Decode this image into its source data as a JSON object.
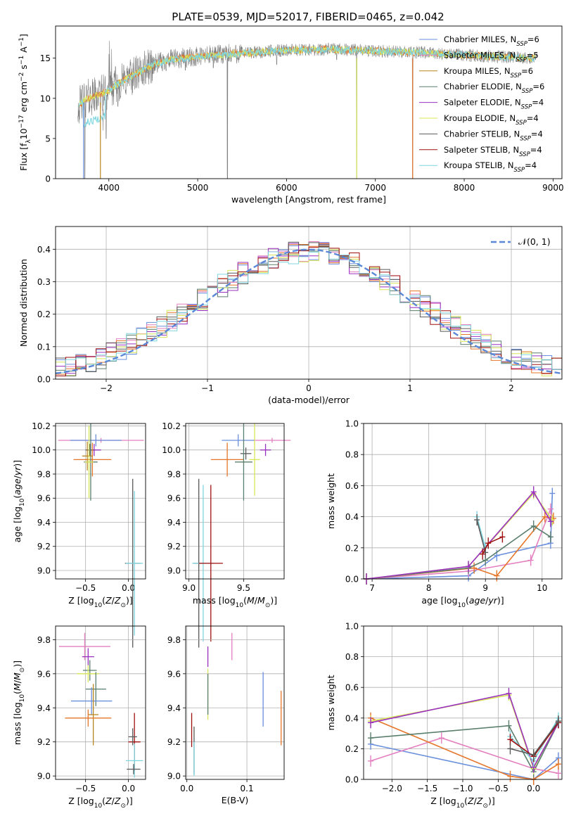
{
  "figure_title": "PLATE=0539, MJD=52017, FIBERID=0465, z=0.042",
  "series_colors": {
    "chabrier_miles": "#6a8fdc",
    "salpeter_miles": "#e47fc0",
    "kroupa_miles": "#b8861e",
    "chabrier_elodie": "#5b7f6e",
    "salpeter_elodie": "#9a30c0",
    "kroupa_elodie": "#d8e65a",
    "chabrier_stelib": "#5a5a5a",
    "salpeter_stelib": "#a01010",
    "kroupa_stelib": "#7fd6e0",
    "orange": "#e6762a",
    "data_gray": "#808080",
    "normal_curve": "#5b87d8"
  },
  "chart_data": [
    {
      "type": "line",
      "panel": "spectrum",
      "xlabel": "wavelength [Angstrom, rest frame]",
      "ylabel": "Flux [f_λ10^−17 erg cm^−2 s^−1 A^−1]",
      "xlim": [
        3400,
        9100
      ],
      "ylim": [
        0,
        19
      ],
      "xticks": [
        4000,
        5000,
        6000,
        7000,
        8000,
        9000
      ],
      "yticks": [
        0,
        5,
        10,
        15
      ],
      "grid": false,
      "legend_position": "top-right",
      "legend": [
        {
          "base": "Chabrier MILES, N",
          "sub": "SSP",
          "tail": "=6",
          "color_key": "chabrier_miles"
        },
        {
          "base": "Salpeter MILES, N",
          "sub": "SSP",
          "tail": "=5",
          "color_key": "salpeter_miles"
        },
        {
          "base": "Kroupa MILES, N",
          "sub": "SSP",
          "tail": "=6",
          "color_key": "kroupa_miles"
        },
        {
          "base": "Chabrier ELODIE, N",
          "sub": "SSP",
          "tail": "=6",
          "color_key": "chabrier_elodie"
        },
        {
          "base": "Salpeter ELODIE, N",
          "sub": "SSP",
          "tail": "=4",
          "color_key": "salpeter_elodie"
        },
        {
          "base": "Kroupa ELODIE, N",
          "sub": "SSP",
          "tail": "=4",
          "color_key": "kroupa_elodie"
        },
        {
          "base": "Chabrier STELIB, N",
          "sub": "SSP",
          "tail": "=4",
          "color_key": "chabrier_stelib"
        },
        {
          "base": "Salpeter STELIB, N",
          "sub": "SSP",
          "tail": "=4",
          "color_key": "salpeter_stelib"
        },
        {
          "base": "Kroupa STELIB, N",
          "sub": "SSP",
          "tail": "=4",
          "color_key": "kroupa_stelib"
        }
      ],
      "continuum": [
        [
          3650,
          9.0
        ],
        [
          3750,
          10.0
        ],
        [
          3900,
          10.5
        ],
        [
          4000,
          11.0
        ],
        [
          4100,
          11.8
        ],
        [
          4300,
          13.0
        ],
        [
          4500,
          14.2
        ],
        [
          4700,
          14.8
        ],
        [
          5000,
          15.2
        ],
        [
          5500,
          15.6
        ],
        [
          6000,
          16.0
        ],
        [
          6500,
          16.1
        ],
        [
          7000,
          15.9
        ],
        [
          7500,
          15.7
        ],
        [
          8000,
          15.4
        ],
        [
          8500,
          15.1
        ],
        [
          8800,
          15.0
        ]
      ],
      "absorption_lines": [
        [
          3730,
          0
        ],
        [
          3935,
          6
        ],
        [
          3970,
          5
        ],
        [
          4101,
          9
        ],
        [
          4304,
          11.5
        ],
        [
          4340,
          12
        ],
        [
          4861,
          13.5
        ],
        [
          5175,
          13.8
        ],
        [
          5335,
          0.5
        ],
        [
          5890,
          14.2
        ],
        [
          6565,
          14.8
        ],
        [
          6790,
          0
        ],
        [
          7420,
          0
        ]
      ],
      "model_cutoffs": [
        [
          3710,
          3960
        ],
        [
          6790,
          6800
        ],
        [
          7420,
          7440
        ]
      ]
    },
    {
      "type": "step",
      "panel": "residual_histogram",
      "xlabel": "(data-model)/error",
      "ylabel": "Normed distribution",
      "xlim": [
        -2.5,
        2.5
      ],
      "ylim": [
        0,
        0.47
      ],
      "xticks": [
        -2,
        -1,
        0,
        1,
        2
      ],
      "yticks": [
        0.0,
        0.1,
        0.2,
        0.3,
        0.4
      ],
      "grid": true,
      "legend_position": "top-right",
      "legend_label": "𝒩(0, 1)",
      "bin_width": 0.1,
      "reference_curve": "standard normal N(0,1)"
    },
    {
      "type": "scatter",
      "panel": "age_vs_metallicity",
      "xlabel": "Z [log10(Z/Z⊙)]",
      "ylabel": "age [log10(age/yr)]",
      "xlim": [
        -0.85,
        0.2
      ],
      "ylim": [
        8.93,
        10.22
      ],
      "xticks": [
        -0.5,
        0.0
      ],
      "yticks": [
        9.0,
        9.2,
        9.4,
        9.6,
        9.8,
        10.0,
        10.2
      ],
      "grid": true,
      "points": [
        {
          "x": -0.32,
          "y": 10.08,
          "xerr": 0.5,
          "yerr": 0.02,
          "color_key": "salpeter_miles"
        },
        {
          "x": -0.38,
          "y": 10.08,
          "xerr": 0.3,
          "yerr": 0.05,
          "color_key": "chabrier_miles"
        },
        {
          "x": -0.4,
          "y": 10.0,
          "xerr": 0.08,
          "yerr": 0.05,
          "color_key": "salpeter_elodie"
        },
        {
          "x": -0.45,
          "y": 10.0,
          "xerr": 0.05,
          "yerr": 0.05,
          "color_key": "chabrier_stelib"
        },
        {
          "x": -0.42,
          "y": 9.92,
          "xerr": 0.22,
          "yerr": 0.14,
          "color_key": "orange"
        },
        {
          "x": -0.44,
          "y": 9.9,
          "xerr": 0.08,
          "yerr": 0.32,
          "color_key": "chabrier_elodie"
        },
        {
          "x": -0.48,
          "y": 9.95,
          "xerr": 0.06,
          "yerr": 0.12,
          "color_key": "kroupa_miles"
        },
        {
          "x": -0.46,
          "y": 9.9,
          "xerr": 0.05,
          "yerr": 0.3,
          "color_key": "kroupa_elodie"
        },
        {
          "x": 0.05,
          "y": 9.06,
          "xerr": 0.09,
          "yerr": 0.7,
          "color_key": "chabrier_stelib"
        },
        {
          "x": 0.07,
          "y": 9.06,
          "xerr": 0.1,
          "yerr": 0.6,
          "color_key": "kroupa_stelib"
        }
      ]
    },
    {
      "type": "scatter",
      "panel": "age_vs_mass",
      "xlabel": "mass [log10(M/M⊙)]",
      "ylabel": "",
      "xlim": [
        8.97,
        9.87
      ],
      "ylim": [
        8.93,
        10.22
      ],
      "xticks": [
        9.0,
        9.5
      ],
      "yticks": [
        9.0,
        9.2,
        9.4,
        9.6,
        9.8,
        10.0,
        10.2
      ],
      "grid": true,
      "points": [
        {
          "x": 9.76,
          "y": 10.08,
          "xerr": 0.17,
          "yerr": 0.02,
          "color_key": "salpeter_miles"
        },
        {
          "x": 9.45,
          "y": 10.08,
          "xerr": 0.15,
          "yerr": 0.05,
          "color_key": "chabrier_miles"
        },
        {
          "x": 9.7,
          "y": 10.0,
          "xerr": 0.05,
          "yerr": 0.05,
          "color_key": "salpeter_elodie"
        },
        {
          "x": 9.52,
          "y": 9.97,
          "xerr": 0.05,
          "yerr": 0.05,
          "color_key": "chabrier_stelib"
        },
        {
          "x": 9.35,
          "y": 9.92,
          "xerr": 0.15,
          "yerr": 0.14,
          "color_key": "orange"
        },
        {
          "x": 9.5,
          "y": 9.9,
          "xerr": 0.08,
          "yerr": 0.32,
          "color_key": "chabrier_elodie"
        },
        {
          "x": 9.6,
          "y": 9.92,
          "xerr": 0.05,
          "yerr": 0.3,
          "color_key": "kroupa_elodie"
        },
        {
          "x": 9.09,
          "y": 9.06,
          "xerr": 0.05,
          "yerr": 0.7,
          "color_key": "chabrier_stelib"
        },
        {
          "x": 9.13,
          "y": 9.06,
          "xerr": 0.1,
          "yerr": 0.65,
          "color_key": "kroupa_stelib"
        },
        {
          "x": 9.2,
          "y": 9.06,
          "xerr": 0.11,
          "yerr": 0.65,
          "color_key": "salpeter_stelib"
        }
      ]
    },
    {
      "type": "line",
      "panel": "mass_weight_vs_age",
      "xlabel": "age [log10(age/yr)]",
      "ylabel": "mass weight",
      "xlim": [
        6.85,
        10.35
      ],
      "ylim": [
        0,
        1.0
      ],
      "xticks": [
        7,
        8,
        9,
        10
      ],
      "yticks": [
        0.0,
        0.2,
        0.4,
        0.6,
        0.8,
        1.0
      ],
      "grid": true,
      "series": [
        {
          "color_key": "chabrier_miles",
          "x": [
            6.9,
            8.7,
            9.2,
            10.15,
            10.18
          ],
          "y": [
            0.0,
            0.02,
            0.15,
            0.23,
            0.55
          ]
        },
        {
          "color_key": "salpeter_miles",
          "x": [
            6.9,
            8.7,
            9.8,
            10.15,
            10.18
          ],
          "y": [
            0.0,
            0.05,
            0.12,
            0.45,
            0.38
          ]
        },
        {
          "color_key": "orange",
          "x": [
            6.9,
            8.8,
            9.2,
            10.05,
            10.2
          ],
          "y": [
            0.0,
            0.07,
            0.02,
            0.4,
            0.39
          ]
        },
        {
          "color_key": "chabrier_elodie",
          "x": [
            6.9,
            8.7,
            9.0,
            9.85,
            10.15
          ],
          "y": [
            0.0,
            0.07,
            0.12,
            0.34,
            0.27
          ]
        },
        {
          "color_key": "kroupa_elodie",
          "x": [
            6.9,
            8.7,
            9.85,
            10.18
          ],
          "y": [
            0.0,
            0.08,
            0.55,
            0.38
          ]
        },
        {
          "color_key": "salpeter_elodie",
          "x": [
            6.9,
            8.7,
            9.85,
            10.15
          ],
          "y": [
            0.0,
            0.08,
            0.56,
            0.37
          ]
        },
        {
          "color_key": "kroupa_stelib",
          "x": [
            8.85,
            9.0
          ],
          "y": [
            0.4,
            0.2
          ]
        },
        {
          "color_key": "chabrier_stelib",
          "x": [
            8.85,
            9.0
          ],
          "y": [
            0.38,
            0.17
          ]
        },
        {
          "color_key": "salpeter_stelib",
          "x": [
            8.95,
            9.05,
            9.3
          ],
          "y": [
            0.16,
            0.23,
            0.27
          ]
        }
      ]
    },
    {
      "type": "scatter",
      "panel": "mass_vs_metallicity",
      "xlabel": "Z [log10(Z/Z⊙)]",
      "ylabel": "mass [log10(M/M⊙)]",
      "xlim": [
        -0.85,
        0.2
      ],
      "ylim": [
        8.98,
        9.88
      ],
      "xticks": [
        -0.5,
        0.0
      ],
      "yticks": [
        9.0,
        9.2,
        9.4,
        9.6,
        9.8
      ],
      "grid": true,
      "points": [
        {
          "x": -0.51,
          "y": 9.76,
          "xerr": 0.3,
          "yerr": 0.08,
          "color_key": "salpeter_miles"
        },
        {
          "x": -0.47,
          "y": 9.7,
          "xerr": 0.07,
          "yerr": 0.05,
          "color_key": "salpeter_elodie"
        },
        {
          "x": -0.45,
          "y": 9.62,
          "xerr": 0.08,
          "yerr": 0.06,
          "color_key": "chabrier_elodie"
        },
        {
          "x": -0.47,
          "y": 9.6,
          "xerr": 0.13,
          "yerr": 0.05,
          "color_key": "kroupa_elodie"
        },
        {
          "x": -0.38,
          "y": 9.51,
          "xerr": 0.12,
          "yerr": 0.1,
          "color_key": "chabrier_elodie"
        },
        {
          "x": -0.43,
          "y": 9.44,
          "xerr": 0.24,
          "yerr": 0.08,
          "color_key": "chabrier_miles"
        },
        {
          "x": -0.41,
          "y": 9.36,
          "xerr": 0.06,
          "yerr": 0.18,
          "color_key": "kroupa_miles"
        },
        {
          "x": -0.47,
          "y": 9.34,
          "xerr": 0.27,
          "yerr": 0.05,
          "color_key": "orange"
        },
        {
          "x": 0.07,
          "y": 9.2,
          "xerr": 0.07,
          "yerr": 0.17,
          "color_key": "salpeter_stelib"
        },
        {
          "x": 0.05,
          "y": 9.23,
          "xerr": 0.05,
          "yerr": 0.05,
          "color_key": "chabrier_stelib"
        },
        {
          "x": 0.07,
          "y": 9.09,
          "xerr": 0.1,
          "yerr": 0.1,
          "color_key": "kroupa_stelib"
        },
        {
          "x": 0.06,
          "y": 9.04,
          "xerr": 0.08,
          "yerr": 0.03,
          "color_key": "chabrier_stelib"
        }
      ]
    },
    {
      "type": "scatter",
      "panel": "mass_vs_ebv",
      "xlabel": "E(B-V)",
      "ylabel": "",
      "xlim": [
        -0.002,
        0.162
      ],
      "ylim": [
        8.98,
        9.88
      ],
      "xticks": [
        0.0,
        0.1
      ],
      "yticks": [
        9.0,
        9.2,
        9.4,
        9.6,
        9.8
      ],
      "grid": true,
      "points": [
        {
          "x": 0.075,
          "y": 9.76,
          "yerr": 0.08,
          "color_key": "salpeter_miles"
        },
        {
          "x": 0.035,
          "y": 9.7,
          "yerr": 0.06,
          "color_key": "salpeter_elodie"
        },
        {
          "x": 0.035,
          "y": 9.48,
          "yerr": 0.15,
          "color_key": "kroupa_elodie"
        },
        {
          "x": 0.035,
          "y": 9.48,
          "yerr": 0.12,
          "color_key": "chabrier_elodie"
        },
        {
          "x": 0.127,
          "y": 9.45,
          "yerr": 0.16,
          "color_key": "chabrier_miles"
        },
        {
          "x": 0.157,
          "y": 9.34,
          "yerr": 0.16,
          "color_key": "orange"
        },
        {
          "x": 0.008,
          "y": 9.27,
          "yerr": 0.1,
          "color_key": "salpeter_stelib"
        },
        {
          "x": 0.012,
          "y": 9.15,
          "yerr": 0.14,
          "color_key": "chabrier_stelib"
        },
        {
          "x": 0.012,
          "y": 9.1,
          "yerr": 0.1,
          "color_key": "kroupa_stelib"
        }
      ]
    },
    {
      "type": "line",
      "panel": "mass_weight_vs_metallicity",
      "xlabel": "Z [log10(Z/Z⊙)]",
      "ylabel": "mass weight",
      "xlim": [
        -2.4,
        0.4
      ],
      "ylim": [
        0,
        1.0
      ],
      "xticks": [
        -2.0,
        -1.5,
        -1.0,
        -0.5,
        0.0
      ],
      "yticks": [
        0.0,
        0.2,
        0.4,
        0.6,
        0.8,
        1.0
      ],
      "grid": true,
      "series": [
        {
          "color_key": "chabrier_miles",
          "x": [
            -2.3,
            0.0,
            0.35
          ],
          "y": [
            0.23,
            0.0,
            0.14
          ]
        },
        {
          "color_key": "salpeter_miles",
          "x": [
            -2.3,
            -1.3,
            0.0,
            0.35
          ],
          "y": [
            0.12,
            0.27,
            0.07,
            0.04
          ]
        },
        {
          "color_key": "orange",
          "x": [
            -2.3,
            -0.33,
            0.0,
            0.35
          ],
          "y": [
            0.4,
            0.02,
            0.0,
            0.1
          ]
        },
        {
          "color_key": "chabrier_elodie",
          "x": [
            -2.3,
            -0.35,
            0.0,
            0.35
          ],
          "y": [
            0.27,
            0.35,
            0.05,
            0.37
          ]
        },
        {
          "color_key": "kroupa_elodie",
          "x": [
            -2.3,
            -0.35,
            0.0,
            0.35
          ],
          "y": [
            0.38,
            0.55,
            0.07,
            0.38
          ]
        },
        {
          "color_key": "salpeter_elodie",
          "x": [
            -2.3,
            -0.35,
            0.0,
            0.35
          ],
          "y": [
            0.37,
            0.56,
            0.08,
            0.37
          ]
        },
        {
          "color_key": "kroupa_stelib",
          "x": [
            -0.33,
            0.0,
            0.35
          ],
          "y": [
            0.28,
            0.12,
            0.4
          ]
        },
        {
          "color_key": "salpeter_stelib",
          "x": [
            -0.33,
            0.0,
            0.35
          ],
          "y": [
            0.26,
            0.15,
            0.37
          ]
        },
        {
          "color_key": "chabrier_stelib",
          "x": [
            -0.33,
            0.0,
            0.35
          ],
          "y": [
            0.2,
            0.16,
            0.38
          ]
        }
      ]
    }
  ]
}
